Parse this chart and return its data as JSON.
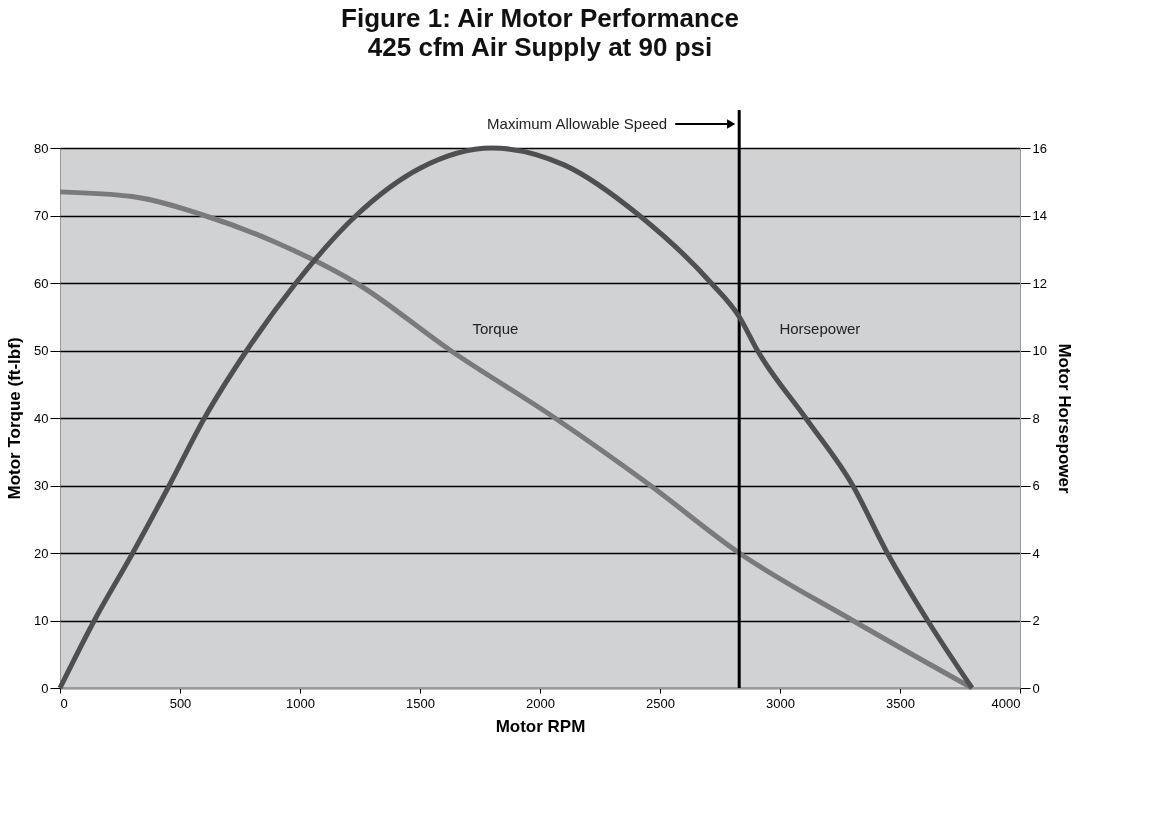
{
  "chart_data": {
    "type": "line",
    "title": "Figure 1: Air Motor Performance",
    "subtitle": "425 cfm Air Supply at 90 psi",
    "xlabel": "Motor RPM",
    "ylabel": "Motor Torque (ft-lbf)",
    "y2label": "Motor Horsepower",
    "series": [
      {
        "name": "Torque",
        "color": "#7a7a7c",
        "x": [
          0,
          300,
          602,
          900,
          1234,
          1627,
          2062,
          2460,
          2830,
          3303,
          3800
        ],
        "values": [
          73.5,
          72.8,
          70,
          66,
          60,
          50,
          40,
          30,
          20,
          10,
          0
        ]
      },
      {
        "name": "Horsepower",
        "color": "#4f4f51",
        "axis": "y2",
        "x": [
          0,
          143,
          303,
          455,
          602,
          778,
          983,
          1234,
          1500,
          1800,
          2100,
          2414,
          2713,
          2830,
          2906,
          3107,
          3303,
          3447,
          3615,
          3800
        ],
        "values": [
          0,
          2,
          4,
          6,
          8,
          10,
          12,
          14,
          15.4,
          16,
          15.5,
          14,
          12,
          11,
          10,
          8,
          6,
          4,
          2,
          0
        ]
      }
    ],
    "xlim": [
      0,
      4000
    ],
    "xticks": [
      0,
      500,
      1000,
      1500,
      2000,
      2500,
      3000,
      3500,
      4000
    ],
    "ylim": [
      0,
      80
    ],
    "yticks": [
      0,
      10,
      20,
      30,
      40,
      50,
      60,
      70,
      80
    ],
    "y2lim": [
      0,
      16
    ],
    "y2ticks": [
      0,
      2,
      4,
      6,
      8,
      10,
      12,
      14,
      16
    ],
    "ref_lines": [
      {
        "axis": "x",
        "value": 2830,
        "label": "Maximum Allowable Speed",
        "color": "#000000"
      }
    ],
    "grid": "y",
    "legend": false,
    "marker": "none",
    "line_style": "solid"
  }
}
